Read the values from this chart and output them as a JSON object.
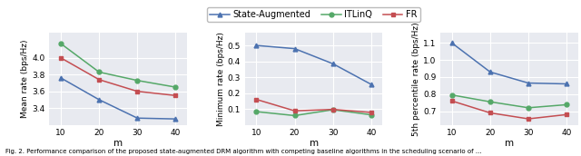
{
  "x": [
    10,
    20,
    30,
    40
  ],
  "legend_labels": [
    "State-Augmented",
    "ITLinQ",
    "FR"
  ],
  "colors": {
    "state_aug": "#4c72b0",
    "itlinq": "#55a868",
    "fr": "#c44e52"
  },
  "markers": {
    "state_aug": "^",
    "itlinq": "o",
    "fr": "s"
  },
  "plot1": {
    "ylabel": "Mean rate (bps/Hz)",
    "state_aug": [
      3.76,
      3.5,
      3.28,
      3.27
    ],
    "itlinq": [
      4.17,
      3.83,
      3.73,
      3.65
    ],
    "fr": [
      4.0,
      3.74,
      3.6,
      3.55
    ],
    "ylim": [
      3.2,
      4.3
    ],
    "yticks": [
      3.4,
      3.6,
      3.8,
      4.0
    ]
  },
  "plot2": {
    "ylabel": "Minimum rate (bps/Hz)",
    "state_aug": [
      0.5,
      0.48,
      0.385,
      0.255
    ],
    "itlinq": [
      0.083,
      0.058,
      0.095,
      0.063
    ],
    "fr": [
      0.16,
      0.088,
      0.097,
      0.078
    ],
    "ylim": [
      0.0,
      0.58
    ],
    "yticks": [
      0.1,
      0.2,
      0.3,
      0.4,
      0.5
    ]
  },
  "plot3": {
    "ylabel": "5th percentile rate (bps/Hz)",
    "state_aug": [
      1.1,
      0.93,
      0.865,
      0.86
    ],
    "itlinq": [
      0.795,
      0.755,
      0.72,
      0.738
    ],
    "fr": [
      0.76,
      0.69,
      0.655,
      0.68
    ],
    "ylim": [
      0.62,
      1.16
    ],
    "yticks": [
      0.7,
      0.8,
      0.9,
      1.0,
      1.1
    ]
  },
  "xlabel": "m",
  "background_color": "#e8eaf0",
  "grid_color": "white",
  "caption": "Fig. 2. Performance comparison of the proposed state-augmented DRM algorithm with competing baseline algorithms in the scheduling scenario of ..."
}
